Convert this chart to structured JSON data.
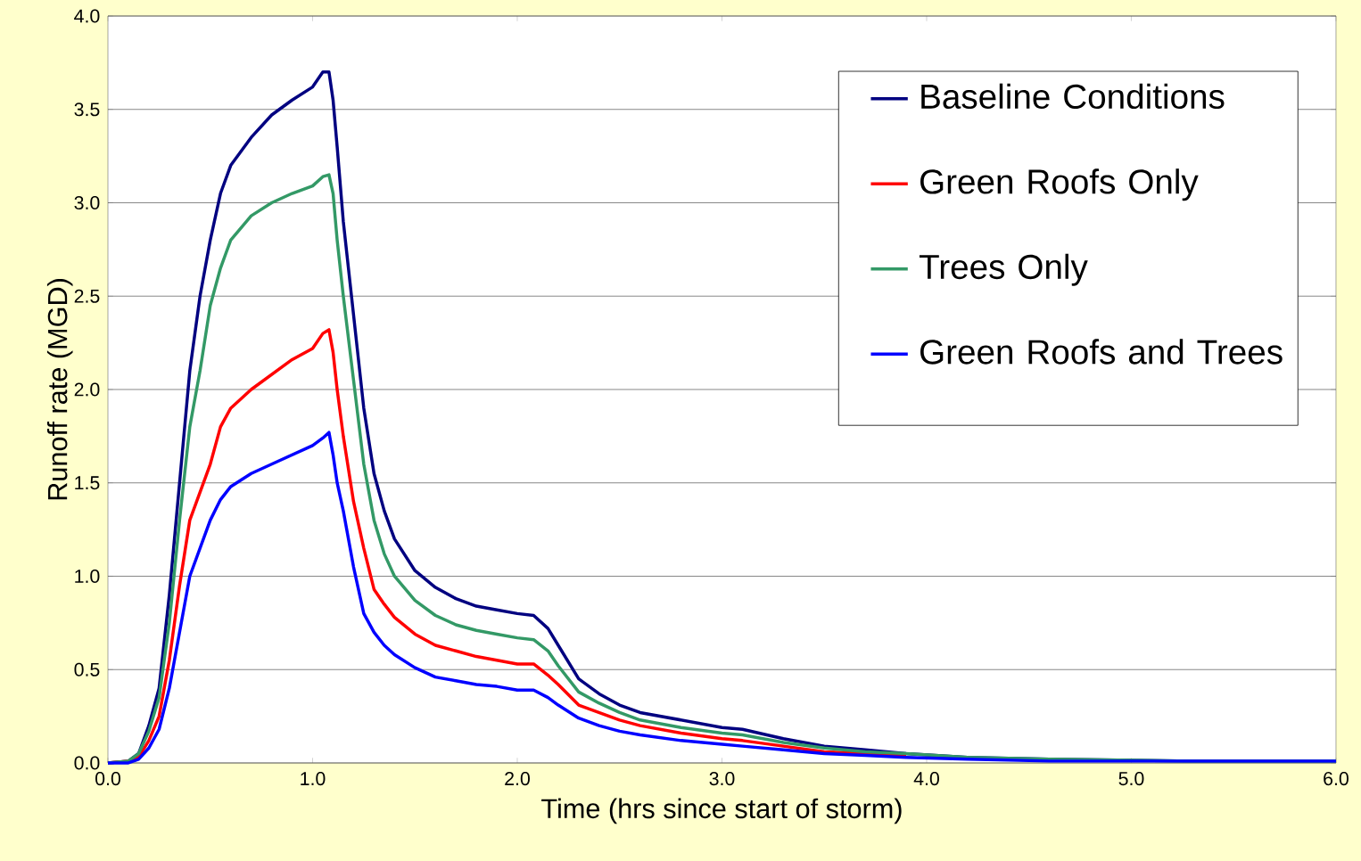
{
  "chart_data": {
    "type": "line",
    "xlabel": "Time (hrs since start of storm)",
    "ylabel": "Runoff rate (MGD)",
    "xlim": [
      0,
      6
    ],
    "ylim": [
      0,
      4
    ],
    "xticks": [
      {
        "value": 0,
        "label": "0.0"
      },
      {
        "value": 1,
        "label": "1.0"
      },
      {
        "value": 2,
        "label": "2.0"
      },
      {
        "value": 3,
        "label": "3.0"
      },
      {
        "value": 4,
        "label": "4.0"
      },
      {
        "value": 5,
        "label": "5.0"
      },
      {
        "value": 6,
        "label": "6.0"
      }
    ],
    "yticks": [
      {
        "value": 0,
        "label": "0.0"
      },
      {
        "value": 0.5,
        "label": "0.5"
      },
      {
        "value": 1,
        "label": "1.0"
      },
      {
        "value": 1.5,
        "label": "1.5"
      },
      {
        "value": 2,
        "label": "2.0"
      },
      {
        "value": 2.5,
        "label": "2.5"
      },
      {
        "value": 3,
        "label": "3.0"
      },
      {
        "value": 3.5,
        "label": "3.5"
      },
      {
        "value": 4,
        "label": "4.0"
      }
    ],
    "grid": "y",
    "legend": "top right",
    "x": [
      0,
      0.1,
      0.15,
      0.2,
      0.25,
      0.3,
      0.35,
      0.4,
      0.45,
      0.5,
      0.55,
      0.6,
      0.7,
      0.8,
      0.9,
      1.0,
      1.05,
      1.08,
      1.1,
      1.12,
      1.15,
      1.2,
      1.25,
      1.3,
      1.35,
      1.4,
      1.5,
      1.6,
      1.7,
      1.8,
      1.9,
      2.0,
      2.08,
      2.15,
      2.2,
      2.3,
      2.4,
      2.5,
      2.6,
      2.8,
      3.0,
      3.1,
      3.3,
      3.5,
      3.7,
      3.9,
      4.2,
      4.6,
      5.3,
      6.0
    ],
    "series": [
      {
        "name": "Baseline Conditions",
        "color": "#000080",
        "values": [
          0,
          0.01,
          0.05,
          0.2,
          0.4,
          0.9,
          1.5,
          2.1,
          2.5,
          2.8,
          3.05,
          3.2,
          3.35,
          3.47,
          3.55,
          3.62,
          3.7,
          3.7,
          3.55,
          3.3,
          2.9,
          2.4,
          1.9,
          1.55,
          1.35,
          1.2,
          1.03,
          0.94,
          0.88,
          0.84,
          0.82,
          0.8,
          0.79,
          0.72,
          0.63,
          0.45,
          0.37,
          0.31,
          0.27,
          0.23,
          0.19,
          0.18,
          0.13,
          0.09,
          0.07,
          0.05,
          0.03,
          0.02,
          0.01,
          0.01
        ]
      },
      {
        "name": "Green Roofs Only",
        "color": "#ff0000",
        "values": [
          0,
          0.01,
          0.03,
          0.12,
          0.25,
          0.55,
          0.95,
          1.3,
          1.45,
          1.6,
          1.8,
          1.9,
          2.0,
          2.08,
          2.16,
          2.22,
          2.3,
          2.32,
          2.2,
          2.0,
          1.75,
          1.4,
          1.15,
          0.93,
          0.85,
          0.78,
          0.69,
          0.63,
          0.6,
          0.57,
          0.55,
          0.53,
          0.53,
          0.47,
          0.42,
          0.31,
          0.27,
          0.23,
          0.2,
          0.16,
          0.13,
          0.12,
          0.09,
          0.06,
          0.05,
          0.04,
          null,
          null,
          null,
          null
        ]
      },
      {
        "name": "Trees Only",
        "color": "#339966",
        "values": [
          0,
          0.01,
          0.05,
          0.17,
          0.35,
          0.75,
          1.3,
          1.8,
          2.1,
          2.45,
          2.65,
          2.8,
          2.93,
          3.0,
          3.05,
          3.09,
          3.14,
          3.15,
          3.05,
          2.8,
          2.5,
          2.05,
          1.6,
          1.3,
          1.12,
          1.0,
          0.87,
          0.79,
          0.74,
          0.71,
          0.69,
          0.67,
          0.66,
          0.6,
          0.52,
          0.38,
          0.32,
          0.27,
          0.23,
          0.19,
          0.16,
          0.15,
          0.11,
          0.08,
          0.06,
          0.05,
          0.03,
          0.02,
          0.01,
          0.01
        ]
      },
      {
        "name": "Green Roofs and Trees",
        "color": "#0000ff",
        "values": [
          0,
          0,
          0.02,
          0.08,
          0.18,
          0.4,
          0.7,
          1.0,
          1.15,
          1.3,
          1.41,
          1.48,
          1.55,
          1.6,
          1.65,
          1.7,
          1.74,
          1.77,
          1.65,
          1.5,
          1.35,
          1.05,
          0.8,
          0.7,
          0.63,
          0.58,
          0.51,
          0.46,
          0.44,
          0.42,
          0.41,
          0.39,
          0.39,
          0.35,
          0.31,
          0.24,
          0.2,
          0.17,
          0.15,
          0.12,
          0.1,
          0.09,
          0.07,
          0.05,
          0.04,
          0.03,
          0.02,
          0.01,
          0.01,
          0.01
        ]
      }
    ]
  }
}
